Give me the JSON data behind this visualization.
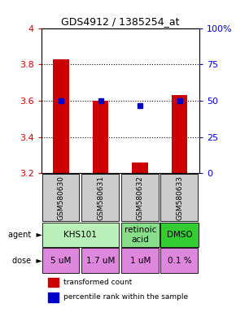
{
  "title": "GDS4912 / 1385254_at",
  "samples": [
    "GSM580630",
    "GSM580631",
    "GSM580632",
    "GSM580633"
  ],
  "bar_values": [
    3.83,
    3.6,
    3.26,
    3.63
  ],
  "percentile_values": [
    3.6,
    3.6,
    3.575,
    3.6
  ],
  "ylim": [
    3.2,
    4.0
  ],
  "yticks": [
    3.2,
    3.4,
    3.6,
    3.8,
    4.0
  ],
  "ytick_labels_left": [
    "3.2",
    "3.4",
    "3.6",
    "3.8",
    "4"
  ],
  "right_yticks": [
    0,
    25,
    50,
    75,
    100
  ],
  "right_ytick_labels": [
    "0",
    "25",
    "50",
    "75",
    "100%"
  ],
  "bar_color": "#cc0000",
  "dot_color": "#0000cc",
  "dose_labels": [
    "5 uM",
    "1.7 uM",
    "1 uM",
    "0.1 %"
  ],
  "dose_color": "#dd88dd",
  "sample_bg_color": "#cccccc",
  "legend_bar_color": "#cc0000",
  "legend_dot_color": "#0000cc",
  "legend_text1": "transformed count",
  "legend_text2": "percentile rank within the sample",
  "khs101_color": "#bbf0bb",
  "retinoic_color": "#88dd88",
  "dmso_color": "#33cc33",
  "agent_label": "agent",
  "dose_label": "dose",
  "gridline_ticks": [
    3.4,
    3.6,
    3.8
  ]
}
